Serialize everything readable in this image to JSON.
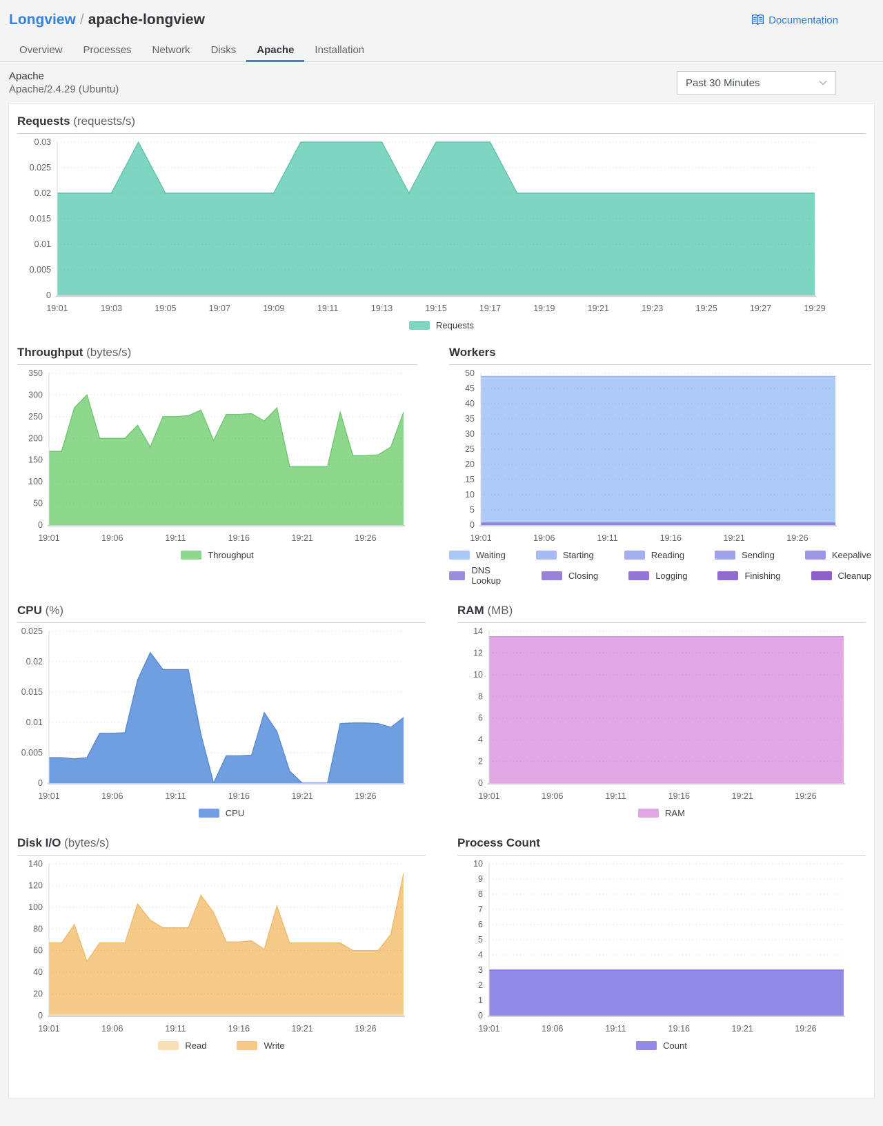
{
  "header": {
    "breadcrumb": {
      "parent": "Longview",
      "separator": "/",
      "current": "apache-longview"
    },
    "documentation_label": "Documentation",
    "tabs": [
      {
        "label": "Overview",
        "active": false
      },
      {
        "label": "Processes",
        "active": false
      },
      {
        "label": "Network",
        "active": false
      },
      {
        "label": "Disks",
        "active": false
      },
      {
        "label": "Apache",
        "active": true
      },
      {
        "label": "Installation",
        "active": false
      }
    ]
  },
  "subheader": {
    "app_title": "Apache",
    "app_version": "Apache/2.4.29 (Ubuntu)",
    "time_range_value": "Past 30 Minutes"
  },
  "colors": {
    "accent_blue": "#3683dc",
    "link_blue": "#2e77d0",
    "axis_text": "#606469"
  },
  "chart_data": [
    {
      "key": "requests",
      "type": "area",
      "title": "Requests",
      "unit": "(requests/s)",
      "ylim": [
        0,
        0.03
      ],
      "yticks": [
        0,
        0.005,
        0.01,
        0.015,
        0.02,
        0.025,
        0.03
      ],
      "ytick_labels": [
        "0",
        "0.005",
        "0.01",
        "0.015",
        "0.02",
        "0.025",
        "0.03"
      ],
      "x_domain_minutes": 28,
      "xticks": [
        0,
        2,
        4,
        6,
        8,
        10,
        12,
        14,
        16,
        18,
        20,
        22,
        24,
        26,
        28
      ],
      "xtick_labels": [
        "19:01",
        "19:03",
        "19:05",
        "19:07",
        "19:09",
        "19:11",
        "19:13",
        "19:15",
        "19:17",
        "19:19",
        "19:21",
        "19:23",
        "19:25",
        "19:27",
        "19:29"
      ],
      "series": [
        {
          "name": "Requests",
          "color": "#7ed6c2",
          "line": "#5fc3ab",
          "values": [
            0.02,
            0.02,
            0.02,
            0.03,
            0.02,
            0.02,
            0.02,
            0.02,
            0.02,
            0.03,
            0.03,
            0.03,
            0.03,
            0.02,
            0.03,
            0.03,
            0.03,
            0.02,
            0.02,
            0.02,
            0.02,
            0.02,
            0.02,
            0.02,
            0.02,
            0.02,
            0.02,
            0.02,
            0.02
          ]
        }
      ],
      "legend": [
        {
          "label": "Requests",
          "color": "#7ed6c2"
        }
      ]
    },
    {
      "key": "throughput",
      "type": "area",
      "title": "Throughput",
      "unit": "(bytes/s)",
      "ylim": [
        0,
        350
      ],
      "yticks": [
        0,
        50,
        100,
        150,
        200,
        250,
        300,
        350
      ],
      "ytick_labels": [
        "0",
        "50",
        "100",
        "150",
        "200",
        "250",
        "300",
        "350"
      ],
      "x_domain_minutes": 28,
      "xticks": [
        0,
        5,
        10,
        15,
        20,
        25
      ],
      "xtick_labels": [
        "19:01",
        "19:06",
        "19:11",
        "19:16",
        "19:21",
        "19:26"
      ],
      "series": [
        {
          "name": "Throughput",
          "color": "#8ed88d",
          "line": "#6fc76f",
          "values": [
            170,
            170,
            270,
            300,
            200,
            200,
            200,
            230,
            180,
            250,
            250,
            252,
            265,
            195,
            255,
            255,
            257,
            240,
            270,
            135,
            135,
            135,
            135,
            260,
            160,
            160,
            162,
            180,
            260
          ]
        }
      ],
      "legend": [
        {
          "label": "Throughput",
          "color": "#8ed88d"
        }
      ]
    },
    {
      "key": "workers",
      "type": "area",
      "title": "Workers",
      "unit": "",
      "ylim": [
        0,
        50
      ],
      "yticks": [
        0,
        5,
        10,
        15,
        20,
        25,
        30,
        35,
        40,
        45,
        50
      ],
      "ytick_labels": [
        "0",
        "5",
        "10",
        "15",
        "20",
        "25",
        "30",
        "35",
        "40",
        "45",
        "50"
      ],
      "x_domain_minutes": 28,
      "xticks": [
        0,
        5,
        10,
        15,
        20,
        25
      ],
      "xtick_labels": [
        "19:01",
        "19:06",
        "19:11",
        "19:16",
        "19:21",
        "19:26"
      ],
      "series": [
        {
          "name": "Waiting",
          "color": "#aecaf7",
          "line": "#9ab8ef",
          "flat": 49,
          "points": 29
        },
        {
          "name": "Closing",
          "color": "#8f85d8",
          "line": "#8f85d8",
          "flat": 0.7,
          "points": 29
        }
      ],
      "legend": [
        {
          "label": "Waiting",
          "color": "#a9c7f9"
        },
        {
          "label": "Starting",
          "color": "#a6baf3"
        },
        {
          "label": "Reading",
          "color": "#a3aeee"
        },
        {
          "label": "Sending",
          "color": "#a0a3e9"
        },
        {
          "label": "Keepalive",
          "color": "#9d98e3"
        },
        {
          "label": "DNS Lookup",
          "color": "#9a8dde"
        },
        {
          "label": "Closing",
          "color": "#9782d8"
        },
        {
          "label": "Logging",
          "color": "#9477d3"
        },
        {
          "label": "Finishing",
          "color": "#916ccd"
        },
        {
          "label": "Cleanup",
          "color": "#8e61c8"
        }
      ]
    },
    {
      "key": "cpu",
      "type": "area",
      "title": "CPU",
      "unit": "(%)",
      "ylim": [
        0,
        0.025
      ],
      "yticks": [
        0,
        0.005,
        0.01,
        0.015,
        0.02,
        0.025
      ],
      "ytick_labels": [
        "0",
        "0.005",
        "0.01",
        "0.015",
        "0.02",
        "0.025"
      ],
      "x_domain_minutes": 28,
      "xticks": [
        0,
        5,
        10,
        15,
        20,
        25
      ],
      "xtick_labels": [
        "19:01",
        "19:06",
        "19:11",
        "19:16",
        "19:21",
        "19:26"
      ],
      "series": [
        {
          "name": "CPU",
          "color": "#709fe1",
          "line": "#5a8ad2",
          "values": [
            0.0042,
            0.0042,
            0.004,
            0.0042,
            0.0082,
            0.0082,
            0.0083,
            0.017,
            0.0215,
            0.0187,
            0.0187,
            0.0187,
            0.008,
            0,
            0.0045,
            0.0045,
            0.0046,
            0.0116,
            0.0085,
            0.002,
            0,
            0,
            0,
            0.0098,
            0.0099,
            0.0099,
            0.0098,
            0.0092,
            0.0108
          ]
        }
      ],
      "legend": [
        {
          "label": "CPU",
          "color": "#709fe1"
        }
      ]
    },
    {
      "key": "ram",
      "type": "area",
      "title": "RAM",
      "unit": "(MB)",
      "ylim": [
        0,
        14
      ],
      "yticks": [
        0,
        2,
        4,
        6,
        8,
        10,
        12,
        14
      ],
      "ytick_labels": [
        "0",
        "2",
        "4",
        "6",
        "8",
        "10",
        "12",
        "14"
      ],
      "x_domain_minutes": 28,
      "xticks": [
        0,
        5,
        10,
        15,
        20,
        25
      ],
      "xtick_labels": [
        "19:01",
        "19:06",
        "19:11",
        "19:16",
        "19:21",
        "19:26"
      ],
      "series": [
        {
          "name": "RAM",
          "color": "#e0a7e4",
          "line": "#d18fd8",
          "flat": 13.5,
          "points": 29
        }
      ],
      "legend": [
        {
          "label": "RAM",
          "color": "#e0a7e4"
        }
      ]
    },
    {
      "key": "diskio",
      "type": "area",
      "title": "Disk I/O",
      "unit": "(bytes/s)",
      "ylim": [
        0,
        140
      ],
      "yticks": [
        0,
        20,
        40,
        60,
        80,
        100,
        120,
        140
      ],
      "ytick_labels": [
        "0",
        "20",
        "40",
        "60",
        "80",
        "100",
        "120",
        "140"
      ],
      "x_domain_minutes": 28,
      "xticks": [
        0,
        5,
        10,
        15,
        20,
        25
      ],
      "xtick_labels": [
        "19:01",
        "19:06",
        "19:11",
        "19:16",
        "19:21",
        "19:26"
      ],
      "series": [
        {
          "name": "Write",
          "color": "#f5c988",
          "line": "#eebb6e",
          "values": [
            67,
            67,
            84,
            50,
            67,
            67,
            67,
            103,
            88,
            81,
            81,
            81,
            111,
            95,
            68,
            68,
            69,
            61,
            101,
            67,
            67,
            67,
            67,
            67,
            60,
            60,
            60,
            75,
            131
          ]
        },
        {
          "name": "Read",
          "color": "#f8dfb5",
          "line": "#f3d29c",
          "flat": 1.5,
          "points": 29
        }
      ],
      "legend": [
        {
          "label": "Read",
          "color": "#f8dfb5"
        },
        {
          "label": "Write",
          "color": "#f5c988"
        }
      ]
    },
    {
      "key": "process_count",
      "type": "area",
      "title": "Process Count",
      "unit": "",
      "ylim": [
        0,
        10
      ],
      "yticks": [
        0,
        1,
        2,
        3,
        4,
        5,
        6,
        7,
        8,
        9,
        10
      ],
      "ytick_labels": [
        "0",
        "1",
        "2",
        "3",
        "4",
        "5",
        "6",
        "7",
        "8",
        "9",
        "10"
      ],
      "x_domain_minutes": 28,
      "xticks": [
        0,
        5,
        10,
        15,
        20,
        25
      ],
      "xtick_labels": [
        "19:01",
        "19:06",
        "19:11",
        "19:16",
        "19:21",
        "19:26"
      ],
      "series": [
        {
          "name": "Count",
          "color": "#918ae9",
          "line": "#7b72df",
          "flat": 3,
          "points": 29
        }
      ],
      "legend": [
        {
          "label": "Count",
          "color": "#918ae9"
        }
      ]
    }
  ]
}
